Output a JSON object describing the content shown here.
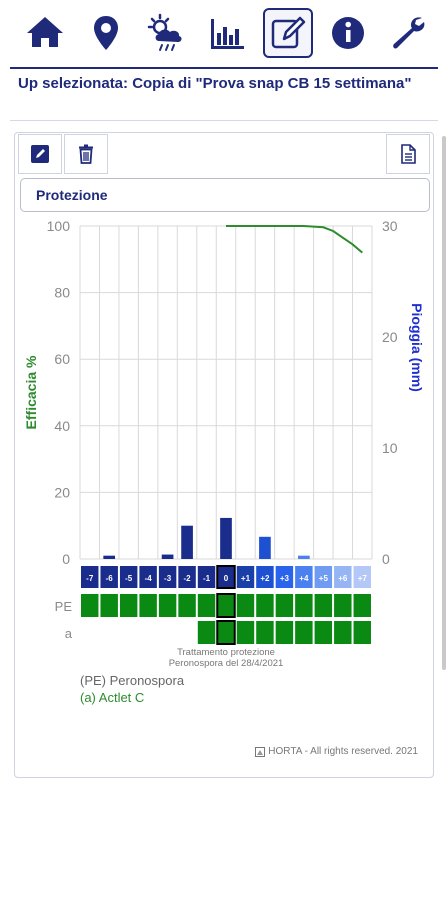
{
  "nav": {
    "items": [
      {
        "name": "home-icon",
        "active": false
      },
      {
        "name": "location-pin-icon",
        "active": false
      },
      {
        "name": "weather-icon",
        "active": false
      },
      {
        "name": "bar-chart-icon",
        "active": false
      },
      {
        "name": "edit-icon",
        "active": true
      },
      {
        "name": "info-icon",
        "active": false
      },
      {
        "name": "wrench-icon",
        "active": false
      }
    ]
  },
  "header": {
    "title": "Up selezionata: Copia di \"Prova snap CB 15 settimana\""
  },
  "toolbar": {
    "icons": [
      "edit-icon",
      "trash-icon",
      "document-icon"
    ]
  },
  "section": {
    "title": "Protezione"
  },
  "chart_data": {
    "type": "bar",
    "ylabel_left": "Efficacia %",
    "ylabel_right": "Pioggia (mm)",
    "y_left_ticks": [
      "100",
      "80",
      "60",
      "40",
      "20",
      "0"
    ],
    "y_right_ticks": [
      "30",
      "20",
      "10",
      "0"
    ],
    "ylim_left": [
      0,
      100
    ],
    "ylim_right": [
      0,
      30
    ],
    "grid": true,
    "day_labels": [
      "-7",
      "-6",
      "-5",
      "-4",
      "-3",
      "-2",
      "-1",
      "0",
      "+1",
      "+2",
      "+3",
      "+4",
      "+5",
      "+6",
      "+7"
    ],
    "series": [
      {
        "name": "Pioggia (mm)",
        "axis": "right",
        "values": [
          0,
          0.3,
          0,
          0,
          0.4,
          3,
          0,
          3.7,
          0,
          2,
          0,
          0.3,
          0,
          0,
          0
        ]
      },
      {
        "name": "Efficacia %",
        "axis": "left",
        "type": "line",
        "x": [
          7,
          8,
          9,
          10,
          11,
          12,
          12.5,
          13,
          13.5,
          14
        ],
        "values": [
          100,
          100,
          100,
          100,
          100,
          99.6,
          98.5,
          96.5,
          94.5,
          92
        ]
      }
    ],
    "rows": [
      {
        "label": "PE",
        "start_index": 0
      },
      {
        "label": "a",
        "start_index": 6
      }
    ],
    "highlight_index": 7,
    "colors": {
      "efficacy": "#2e8b2e",
      "rain_dark": "#1a2d8c",
      "rain_mid": "#1f56e0",
      "cell_green": "#0b8a13",
      "grid": "#d9d9d9",
      "axis_text": "#8a8a8a",
      "left_label": "#2e8b2e",
      "right_label": "#1f2fd0",
      "day_colors": [
        "#1a2d8c",
        "#1a2d8c",
        "#1a2d8c",
        "#1a2d8c",
        "#1a2d8c",
        "#1a2d8c",
        "#1a2d8c",
        "#1a2d8c",
        "#1a3fa8",
        "#1e50d2",
        "#2a63ec",
        "#4a80f0",
        "#6f9bf2",
        "#96b5f5",
        "#b3c8f7"
      ]
    },
    "annotation": "Trattamento protezione\nPeronospora del 28/4/2021"
  },
  "legend": {
    "pe": "(PE) Peronospora",
    "a": "(a) Actlet C"
  },
  "footer": {
    "credit": "HORTA - All rights reserved. 2021"
  }
}
